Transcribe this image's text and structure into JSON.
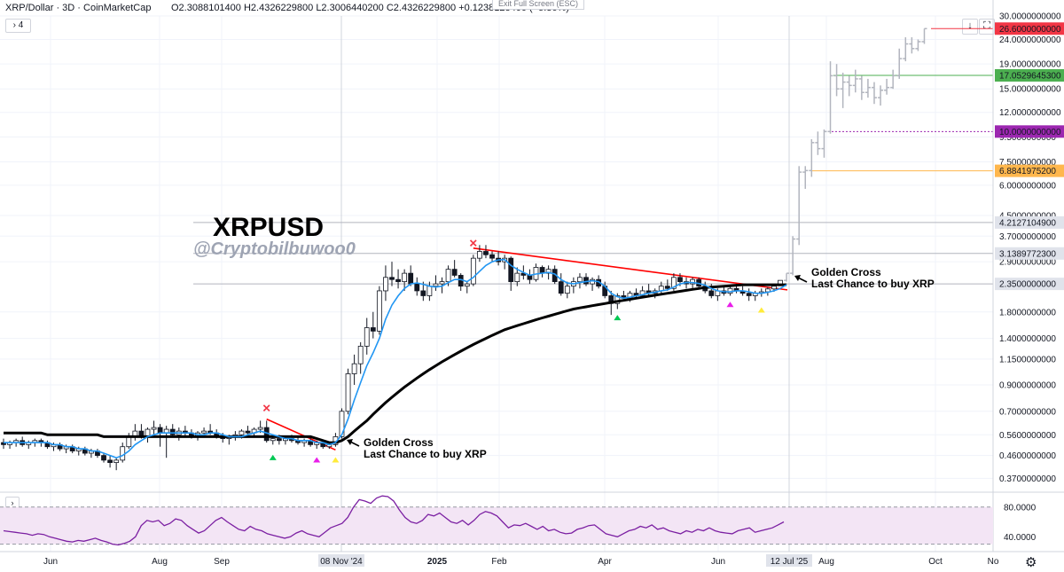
{
  "header": {
    "symbol": "XRP/Dollar · 3D · CoinMarketCap",
    "ohlc": "O2.3088101400  H2.4326229800  L2.3006440200  C2.4326229800  +0.1238128400 (+5.36%)",
    "exit_fullscreen": "Exit Full Screen (ESC)",
    "indicator_toggle": "› 4",
    "rsi_toggle": "›"
  },
  "colors": {
    "up": "#26a69a",
    "ma_fast": "#2196f3",
    "ma_slow": "#000000",
    "trend": "#ff0000",
    "rsi": "#7b1fa2",
    "rsi_band": "#f3e5f5",
    "projection": "#b2b5be"
  },
  "chart_data": {
    "type": "candlestick",
    "title": "XRPUSD",
    "watermark": "@Cryptobilbuwoo0",
    "y_scale": "log",
    "ylim": [
      0.33,
      30
    ],
    "y_ticks": [
      "30.0000000000",
      "24.0000000000",
      "19.0000000000",
      "15.0000000000",
      "12.0000000000",
      "9.5000000000",
      "7.5000000000",
      "6.0000000000",
      "4.5000000000",
      "3.7000000000",
      "2.9000000000",
      "1.8000000000",
      "1.4000000000",
      "1.1500000000",
      "0.9000000000",
      "0.7000000000",
      "0.5600000000",
      "0.4600000000",
      "0.3700000000"
    ],
    "y_tick_values": [
      30,
      24,
      19,
      15,
      12,
      9.5,
      7.5,
      6,
      4.5,
      3.7,
      2.9,
      1.8,
      1.4,
      1.15,
      0.9,
      0.7,
      0.56,
      0.46,
      0.37
    ],
    "x_ticks": [
      "Jun",
      "Aug",
      "Sep",
      "08 Nov '24",
      "2025",
      "Feb",
      "Apr",
      "Jun",
      "12 Jul '25",
      "Aug",
      "Oct",
      "No"
    ],
    "price_levels": [
      {
        "value": 26.6,
        "label": "26.6000000000",
        "color": "#f23645"
      },
      {
        "value": 17.05296453,
        "label": "17.0529645300",
        "color": "#4caf50"
      },
      {
        "value": 10.0,
        "label": "10.0000000000",
        "color": "#9c27b0"
      },
      {
        "value": 6.88419752,
        "label": "6.8841975200",
        "color": "#ffb74d"
      },
      {
        "value": 4.21271049,
        "label": "4.2127104900",
        "color": "#b2b5be"
      },
      {
        "value": 3.13897723,
        "label": "3.1389772300",
        "color": "#b2b5be"
      },
      {
        "value": 2.35,
        "label": "2.3500000000",
        "color": "#b2b5be"
      }
    ],
    "annotations": [
      {
        "line1": "Golden Cross",
        "line2": "Last Chance to buy XRP"
      },
      {
        "line1": "Golden Cross",
        "line2": "Last Chance to buy XRP"
      }
    ],
    "rsi": {
      "ylim": [
        20,
        100
      ],
      "y_ticks": [
        "80.0000",
        "40.0000"
      ],
      "y_tick_values": [
        80,
        40
      ],
      "band": [
        30,
        70
      ],
      "values": [
        48,
        47,
        46,
        45,
        44,
        42,
        44,
        43,
        40,
        38,
        36,
        34,
        33,
        35,
        34,
        36,
        38,
        35,
        33,
        30,
        29,
        31,
        34,
        40,
        55,
        62,
        60,
        62,
        55,
        58,
        64,
        62,
        55,
        50,
        45,
        48,
        55,
        62,
        66,
        60,
        55,
        50,
        48,
        54,
        50,
        48,
        44,
        42,
        40,
        38,
        40,
        45,
        48,
        44,
        42,
        40,
        46,
        52,
        55,
        58,
        66,
        80,
        90,
        88,
        85,
        92,
        95,
        94,
        88,
        76,
        66,
        60,
        58,
        62,
        70,
        68,
        72,
        66,
        60,
        58,
        62,
        56,
        62,
        70,
        74,
        72,
        68,
        60,
        52,
        56,
        55,
        58,
        54,
        50,
        54,
        48,
        50,
        46,
        44,
        45,
        50,
        52,
        55,
        56,
        50,
        44,
        42,
        40,
        44,
        48,
        50,
        54,
        52,
        56,
        50,
        52,
        48,
        46,
        44,
        48,
        46,
        50,
        48,
        52,
        48,
        46,
        45,
        44,
        48,
        50,
        52,
        46,
        48,
        50,
        52,
        56,
        60
      ]
    },
    "candles": [
      [
        0.52,
        0.54,
        0.49,
        0.51
      ],
      [
        0.51,
        0.53,
        0.49,
        0.52
      ],
      [
        0.52,
        0.54,
        0.5,
        0.53
      ],
      [
        0.53,
        0.55,
        0.5,
        0.51
      ],
      [
        0.51,
        0.53,
        0.49,
        0.52
      ],
      [
        0.52,
        0.54,
        0.5,
        0.53
      ],
      [
        0.53,
        0.54,
        0.5,
        0.52
      ],
      [
        0.52,
        0.53,
        0.49,
        0.5
      ],
      [
        0.5,
        0.52,
        0.48,
        0.51
      ],
      [
        0.51,
        0.52,
        0.48,
        0.49
      ],
      [
        0.49,
        0.51,
        0.47,
        0.5
      ],
      [
        0.5,
        0.51,
        0.47,
        0.48
      ],
      [
        0.48,
        0.5,
        0.46,
        0.49
      ],
      [
        0.49,
        0.5,
        0.46,
        0.47
      ],
      [
        0.47,
        0.49,
        0.45,
        0.48
      ],
      [
        0.48,
        0.49,
        0.45,
        0.46
      ],
      [
        0.46,
        0.47,
        0.43,
        0.44
      ],
      [
        0.44,
        0.46,
        0.41,
        0.43
      ],
      [
        0.43,
        0.45,
        0.4,
        0.44
      ],
      [
        0.44,
        0.52,
        0.43,
        0.5
      ],
      [
        0.5,
        0.57,
        0.49,
        0.55
      ],
      [
        0.55,
        0.62,
        0.53,
        0.58
      ],
      [
        0.58,
        0.62,
        0.54,
        0.55
      ],
      [
        0.55,
        0.6,
        0.52,
        0.59
      ],
      [
        0.59,
        0.64,
        0.56,
        0.6
      ],
      [
        0.6,
        0.62,
        0.5,
        0.57
      ],
      [
        0.57,
        0.61,
        0.45,
        0.59
      ],
      [
        0.59,
        0.62,
        0.55,
        0.56
      ],
      [
        0.56,
        0.6,
        0.53,
        0.58
      ],
      [
        0.58,
        0.61,
        0.55,
        0.57
      ],
      [
        0.57,
        0.59,
        0.54,
        0.55
      ],
      [
        0.55,
        0.58,
        0.53,
        0.57
      ],
      [
        0.57,
        0.6,
        0.55,
        0.58
      ],
      [
        0.58,
        0.62,
        0.56,
        0.57
      ],
      [
        0.57,
        0.59,
        0.54,
        0.55
      ],
      [
        0.55,
        0.57,
        0.52,
        0.54
      ],
      [
        0.54,
        0.56,
        0.51,
        0.55
      ],
      [
        0.55,
        0.58,
        0.53,
        0.56
      ],
      [
        0.56,
        0.59,
        0.54,
        0.58
      ],
      [
        0.58,
        0.61,
        0.56,
        0.57
      ],
      [
        0.57,
        0.6,
        0.55,
        0.59
      ],
      [
        0.59,
        0.64,
        0.57,
        0.6
      ],
      [
        0.6,
        0.64,
        0.52,
        0.53
      ],
      [
        0.53,
        0.56,
        0.51,
        0.54
      ],
      [
        0.54,
        0.56,
        0.51,
        0.53
      ],
      [
        0.53,
        0.55,
        0.51,
        0.54
      ],
      [
        0.54,
        0.56,
        0.52,
        0.53
      ],
      [
        0.53,
        0.55,
        0.51,
        0.52
      ],
      [
        0.52,
        0.54,
        0.5,
        0.53
      ],
      [
        0.53,
        0.55,
        0.5,
        0.51
      ],
      [
        0.51,
        0.53,
        0.49,
        0.52
      ],
      [
        0.52,
        0.53,
        0.49,
        0.5
      ],
      [
        0.5,
        0.52,
        0.49,
        0.51
      ],
      [
        0.51,
        0.57,
        0.5,
        0.55
      ],
      [
        0.55,
        0.72,
        0.54,
        0.7
      ],
      [
        0.7,
        1.05,
        0.68,
        1.0
      ],
      [
        1.0,
        1.2,
        0.9,
        1.1
      ],
      [
        1.1,
        1.35,
        1.0,
        1.3
      ],
      [
        1.3,
        1.7,
        1.2,
        1.55
      ],
      [
        1.55,
        1.8,
        1.4,
        1.5
      ],
      [
        1.5,
        2.3,
        1.45,
        2.2
      ],
      [
        2.2,
        2.8,
        2.0,
        2.5
      ],
      [
        2.5,
        2.9,
        2.3,
        2.45
      ],
      [
        2.45,
        2.7,
        2.25,
        2.4
      ],
      [
        2.4,
        2.7,
        2.2,
        2.6
      ],
      [
        2.6,
        2.8,
        2.3,
        2.35
      ],
      [
        2.35,
        2.5,
        2.1,
        2.2
      ],
      [
        2.2,
        2.4,
        2.0,
        2.1
      ],
      [
        2.1,
        2.4,
        2.0,
        2.3
      ],
      [
        2.3,
        2.55,
        2.2,
        2.35
      ],
      [
        2.35,
        2.5,
        2.15,
        2.4
      ],
      [
        2.4,
        2.8,
        2.3,
        2.7
      ],
      [
        2.7,
        2.95,
        2.5,
        2.55
      ],
      [
        2.55,
        2.6,
        2.2,
        2.3
      ],
      [
        2.3,
        2.4,
        2.15,
        2.35
      ],
      [
        2.35,
        3.1,
        2.3,
        3.0
      ],
      [
        3.0,
        3.4,
        2.9,
        3.2
      ],
      [
        3.2,
        3.4,
        3.0,
        3.1
      ],
      [
        3.1,
        3.2,
        2.9,
        3.0
      ],
      [
        3.0,
        3.2,
        2.8,
        2.9
      ],
      [
        2.9,
        3.1,
        2.7,
        3.0
      ],
      [
        3.0,
        3.05,
        2.2,
        2.4
      ],
      [
        2.4,
        2.75,
        2.3,
        2.6
      ],
      [
        2.6,
        2.8,
        2.45,
        2.55
      ],
      [
        2.55,
        2.7,
        2.35,
        2.45
      ],
      [
        2.45,
        2.85,
        2.4,
        2.75
      ],
      [
        2.75,
        2.8,
        2.5,
        2.6
      ],
      [
        2.6,
        2.8,
        2.45,
        2.7
      ],
      [
        2.7,
        2.8,
        2.35,
        2.4
      ],
      [
        2.4,
        2.6,
        2.1,
        2.15
      ],
      [
        2.15,
        2.4,
        2.05,
        2.3
      ],
      [
        2.3,
        2.5,
        2.15,
        2.4
      ],
      [
        2.4,
        2.6,
        2.25,
        2.5
      ],
      [
        2.5,
        2.6,
        2.3,
        2.35
      ],
      [
        2.35,
        2.5,
        2.2,
        2.45
      ],
      [
        2.45,
        2.55,
        2.25,
        2.3
      ],
      [
        2.3,
        2.4,
        2.05,
        2.1
      ],
      [
        2.1,
        2.2,
        1.75,
        1.95
      ],
      [
        1.95,
        2.15,
        1.85,
        2.1
      ],
      [
        2.1,
        2.2,
        2.0,
        2.05
      ],
      [
        2.05,
        2.2,
        1.98,
        2.15
      ],
      [
        2.15,
        2.25,
        2.05,
        2.1
      ],
      [
        2.1,
        2.3,
        2.05,
        2.2
      ],
      [
        2.2,
        2.35,
        2.1,
        2.15
      ],
      [
        2.15,
        2.25,
        2.05,
        2.2
      ],
      [
        2.2,
        2.4,
        2.15,
        2.3
      ],
      [
        2.3,
        2.45,
        2.2,
        2.25
      ],
      [
        2.25,
        2.6,
        2.2,
        2.5
      ],
      [
        2.5,
        2.6,
        2.3,
        2.4
      ],
      [
        2.4,
        2.5,
        2.25,
        2.35
      ],
      [
        2.35,
        2.5,
        2.25,
        2.45
      ],
      [
        2.45,
        2.5,
        2.25,
        2.3
      ],
      [
        2.3,
        2.4,
        2.15,
        2.2
      ],
      [
        2.2,
        2.35,
        2.05,
        2.1
      ],
      [
        2.1,
        2.25,
        2.0,
        2.2
      ],
      [
        2.2,
        2.3,
        2.1,
        2.15
      ],
      [
        2.15,
        2.3,
        2.1,
        2.25
      ],
      [
        2.25,
        2.35,
        2.15,
        2.2
      ],
      [
        2.2,
        2.3,
        2.1,
        2.15
      ],
      [
        2.15,
        2.25,
        2.0,
        2.1
      ],
      [
        2.1,
        2.2,
        2.0,
        2.15
      ],
      [
        2.15,
        2.25,
        2.08,
        2.18
      ],
      [
        2.18,
        2.28,
        2.1,
        2.24
      ],
      [
        2.24,
        2.34,
        2.18,
        2.3
      ],
      [
        2.31,
        2.43,
        2.3,
        2.43
      ]
    ],
    "ma_fast_values": [
      0.52,
      0.52,
      0.52,
      0.52,
      0.52,
      0.52,
      0.52,
      0.52,
      0.51,
      0.51,
      0.5,
      0.5,
      0.49,
      0.49,
      0.48,
      0.48,
      0.47,
      0.46,
      0.45,
      0.46,
      0.48,
      0.51,
      0.53,
      0.55,
      0.56,
      0.57,
      0.57,
      0.57,
      0.57,
      0.57,
      0.57,
      0.56,
      0.56,
      0.57,
      0.57,
      0.56,
      0.55,
      0.55,
      0.55,
      0.56,
      0.57,
      0.58,
      0.57,
      0.56,
      0.55,
      0.54,
      0.54,
      0.53,
      0.53,
      0.53,
      0.52,
      0.52,
      0.51,
      0.52,
      0.56,
      0.65,
      0.78,
      0.92,
      1.08,
      1.22,
      1.4,
      1.68,
      1.92,
      2.1,
      2.25,
      2.35,
      2.37,
      2.34,
      2.3,
      2.28,
      2.3,
      2.38,
      2.45,
      2.45,
      2.4,
      2.5,
      2.65,
      2.8,
      2.9,
      2.95,
      2.96,
      2.8,
      2.7,
      2.62,
      2.55,
      2.58,
      2.6,
      2.62,
      2.58,
      2.45,
      2.37,
      2.35,
      2.38,
      2.4,
      2.42,
      2.4,
      2.3,
      2.15,
      2.08,
      2.05,
      2.07,
      2.1,
      2.12,
      2.15,
      2.17,
      2.2,
      2.22,
      2.28,
      2.35,
      2.38,
      2.38,
      2.36,
      2.32,
      2.25,
      2.2,
      2.18,
      2.18,
      2.2,
      2.2,
      2.18,
      2.15,
      2.15,
      2.17,
      2.2,
      2.25,
      2.33
    ],
    "ma_slow_values": [
      0.57,
      0.57,
      0.57,
      0.57,
      0.57,
      0.57,
      0.57,
      0.56,
      0.56,
      0.56,
      0.56,
      0.56,
      0.56,
      0.56,
      0.56,
      0.56,
      0.55,
      0.55,
      0.55,
      0.55,
      0.55,
      0.55,
      0.55,
      0.55,
      0.55,
      0.55,
      0.55,
      0.55,
      0.55,
      0.55,
      0.55,
      0.55,
      0.55,
      0.55,
      0.55,
      0.55,
      0.55,
      0.55,
      0.55,
      0.55,
      0.55,
      0.55,
      0.55,
      0.55,
      0.55,
      0.55,
      0.55,
      0.55,
      0.55,
      0.55,
      0.54,
      0.53,
      0.52,
      0.52,
      0.53,
      0.55,
      0.58,
      0.61,
      0.64,
      0.68,
      0.72,
      0.76,
      0.8,
      0.84,
      0.88,
      0.92,
      0.96,
      1.0,
      1.04,
      1.08,
      1.12,
      1.16,
      1.2,
      1.24,
      1.28,
      1.32,
      1.36,
      1.4,
      1.44,
      1.48,
      1.52,
      1.55,
      1.58,
      1.61,
      1.64,
      1.67,
      1.7,
      1.73,
      1.76,
      1.79,
      1.82,
      1.85,
      1.87,
      1.89,
      1.91,
      1.93,
      1.95,
      1.97,
      1.99,
      2.01,
      2.03,
      2.05,
      2.07,
      2.09,
      2.11,
      2.13,
      2.15,
      2.17,
      2.19,
      2.21,
      2.23,
      2.25,
      2.27,
      2.28,
      2.29,
      2.3,
      2.31,
      2.32,
      2.33,
      2.33,
      2.33,
      2.33,
      2.33,
      2.33,
      2.33,
      2.33
    ],
    "projection_bars": [
      [
        2.43,
        2.6,
        2.4,
        2.6
      ],
      [
        2.6,
        3.7,
        2.55,
        3.6
      ],
      [
        3.6,
        7.2,
        3.4,
        6.8
      ],
      [
        6.8,
        7.2,
        5.8,
        6.9
      ],
      [
        6.9,
        9.3,
        6.5,
        9.0
      ],
      [
        9.0,
        10.0,
        8.0,
        8.5
      ],
      [
        8.5,
        10.2,
        7.8,
        10.0
      ],
      [
        10.0,
        19.5,
        9.8,
        17.0
      ],
      [
        17.0,
        19.0,
        14.0,
        15.0
      ],
      [
        15.0,
        17.5,
        12.5,
        16.0
      ],
      [
        16.0,
        17.0,
        14.0,
        15.5
      ],
      [
        15.5,
        18.0,
        14.5,
        16.5
      ],
      [
        16.5,
        17.0,
        13.5,
        14.5
      ],
      [
        14.5,
        16.5,
        13.8,
        15.2
      ],
      [
        15.2,
        16.0,
        13.0,
        13.8
      ],
      [
        13.8,
        15.5,
        12.8,
        14.8
      ],
      [
        14.8,
        16.5,
        14.2,
        15.2
      ],
      [
        15.2,
        18.0,
        15.0,
        17.0
      ],
      [
        17.0,
        22.0,
        16.5,
        20.0
      ],
      [
        20.0,
        24.5,
        19.5,
        23.0
      ],
      [
        23.0,
        24.5,
        21.0,
        22.0
      ],
      [
        22.0,
        24.0,
        21.5,
        23.5
      ],
      [
        23.5,
        26.6,
        23.0,
        26.6
      ]
    ],
    "markers": [
      {
        "type": "x",
        "color": "#f23645",
        "value": 0.72
      },
      {
        "type": "x",
        "color": "#f23645",
        "value": 3.45
      },
      {
        "type": "triangle",
        "color": "#00c853",
        "value": 0.455
      },
      {
        "type": "triangle",
        "color": "#e91ee9",
        "value": 0.445
      },
      {
        "type": "triangle",
        "color": "#ffeb3b",
        "value": 0.445
      },
      {
        "type": "triangle",
        "color": "#00c853",
        "value": 1.72
      },
      {
        "type": "triangle",
        "color": "#e91ee9",
        "value": 1.95
      },
      {
        "type": "triangle",
        "color": "#ffeb3b",
        "value": 1.85
      }
    ]
  }
}
